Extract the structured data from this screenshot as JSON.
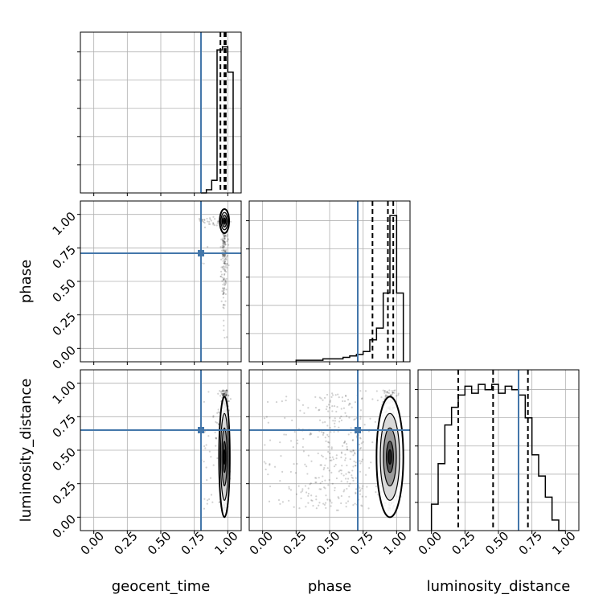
{
  "chart_data": {
    "type": "corner",
    "parameters": [
      "geocent_time",
      "phase",
      "luminosity_distance"
    ],
    "axis_ticks": [
      "0.00",
      "0.25",
      "0.50",
      "0.75",
      "1.00"
    ],
    "tick_values": [
      0.0,
      0.25,
      0.5,
      0.75,
      1.0
    ],
    "axis_range": [
      -0.1,
      1.1
    ],
    "grid": true,
    "truth_values": {
      "geocent_time": 0.8,
      "phase": 0.71,
      "luminosity_distance": 0.65
    },
    "truth_color": "#4477aa",
    "quantiles": {
      "geocent_time": [
        0.945,
        0.975,
        0.985
      ],
      "phase": [
        0.82,
        0.935,
        0.975
      ],
      "luminosity_distance": [
        0.2,
        0.46,
        0.72
      ]
    },
    "histograms": {
      "geocent_time": {
        "edges": [
          0.8,
          0.84,
          0.88,
          0.92,
          0.96,
          1.0,
          1.04
        ],
        "counts": [
          0.0,
          0.02,
          0.08,
          0.9,
          0.92,
          0.76
        ]
      },
      "phase": {
        "edges": [
          0.25,
          0.3,
          0.35,
          0.4,
          0.45,
          0.5,
          0.55,
          0.6,
          0.65,
          0.7,
          0.75,
          0.8,
          0.85,
          0.9,
          0.95,
          1.0,
          1.05
        ],
        "counts": [
          0.01,
          0.01,
          0.01,
          0.01,
          0.02,
          0.02,
          0.02,
          0.03,
          0.04,
          0.05,
          0.07,
          0.15,
          0.23,
          0.47,
          1.0,
          0.47
        ]
      },
      "luminosity_distance": {
        "edges": [
          0.0,
          0.05,
          0.1,
          0.15,
          0.2,
          0.25,
          0.3,
          0.35,
          0.4,
          0.45,
          0.5,
          0.55,
          0.6,
          0.65,
          0.7,
          0.75,
          0.8,
          0.85,
          0.9,
          0.95,
          1.0
        ],
        "counts": [
          0.15,
          0.38,
          0.6,
          0.7,
          0.77,
          0.82,
          0.78,
          0.83,
          0.8,
          0.83,
          0.78,
          0.82,
          0.8,
          0.77,
          0.64,
          0.43,
          0.31,
          0.19,
          0.06,
          0.0
        ]
      }
    },
    "density_centers": {
      "phase_vs_geocent_time": {
        "x": 0.975,
        "y": 0.95
      },
      "luminosity_distance_vs_geocent_time": {
        "x": 0.975,
        "y": 0.45
      },
      "luminosity_distance_vs_phase": {
        "x": 0.95,
        "y": 0.45
      }
    }
  }
}
